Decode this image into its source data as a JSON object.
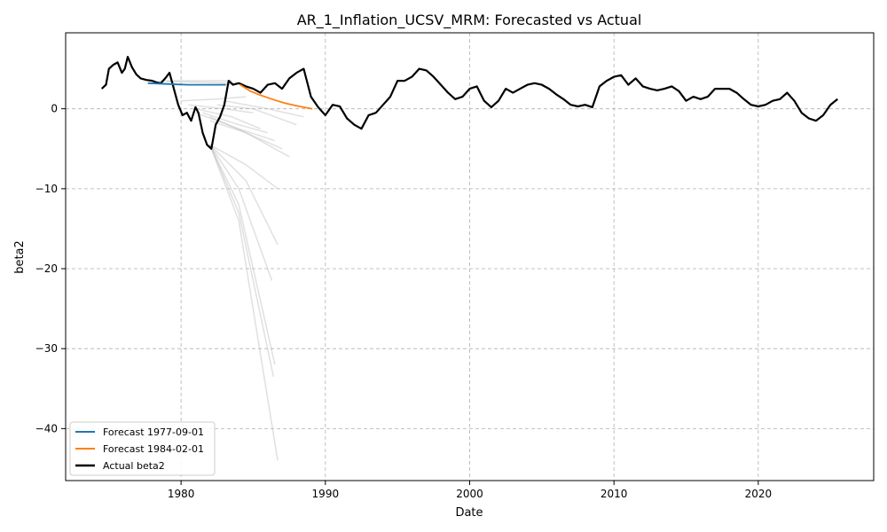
{
  "chart_data": {
    "type": "line",
    "title": "AR_1_Inflation_UCSV_MRM: Forecasted vs Actual",
    "xlabel": "Date",
    "ylabel": "beta2",
    "xlim": [
      1972,
      2028
    ],
    "ylim": [
      -46.5,
      9.5
    ],
    "x_ticks": [
      1980,
      1990,
      2000,
      2010,
      2020
    ],
    "y_ticks": [
      0,
      -10,
      -20,
      -30,
      -40
    ],
    "grid": true,
    "legend_position": "lower-left",
    "colors": {
      "forecast_1": "#1f77b4",
      "forecast_2": "#ff7f0e",
      "actual": "#000000",
      "background_forecasts": "#bbbbbb"
    },
    "series": [
      {
        "name": "Forecast 1977-09-01",
        "color": "#1f77b4",
        "x": [
          1977.7,
          1979,
          1980.5,
          1982,
          1983.1
        ],
        "y": [
          3.2,
          3.1,
          3.0,
          3.0,
          3.0
        ]
      },
      {
        "name": "Forecast 1984-02-01",
        "color": "#ff7f0e",
        "x": [
          1984.1,
          1984.8,
          1985.5,
          1986.3,
          1987.2,
          1988.2,
          1989.1
        ],
        "y": [
          3.0,
          2.2,
          1.7,
          1.2,
          0.7,
          0.3,
          0.0
        ]
      },
      {
        "name": "Actual beta2",
        "color": "#000000",
        "x": [
          1974.5,
          1974.8,
          1975.0,
          1975.3,
          1975.6,
          1975.9,
          1976.1,
          1976.3,
          1976.6,
          1976.9,
          1977.2,
          1977.6,
          1978.0,
          1978.3,
          1978.6,
          1978.9,
          1979.2,
          1979.5,
          1979.8,
          1980.1,
          1980.4,
          1980.7,
          1981.0,
          1981.2,
          1981.5,
          1981.8,
          1982.1,
          1982.4,
          1982.7,
          1983.0,
          1983.3,
          1983.6,
          1984.0,
          1984.5,
          1985.0,
          1985.5,
          1986.0,
          1986.5,
          1987.0,
          1987.5,
          1988.0,
          1988.5,
          1989.0,
          1989.5,
          1990.0,
          1990.5,
          1991.0,
          1991.5,
          1992.0,
          1992.5,
          1993.0,
          1993.5,
          1994.0,
          1994.5,
          1995.0,
          1995.5,
          1996.0,
          1996.5,
          1997.0,
          1997.5,
          1998.0,
          1998.5,
          1999.0,
          1999.5,
          2000.0,
          2000.5,
          2001.0,
          2001.5,
          2002.0,
          2002.5,
          2003.0,
          2003.5,
          2004.0,
          2004.5,
          2005.0,
          2005.5,
          2006.0,
          2006.5,
          2007.0,
          2007.5,
          2008.0,
          2008.5,
          2009.0,
          2009.5,
          2010.0,
          2010.5,
          2011.0,
          2011.5,
          2012.0,
          2012.5,
          2013.0,
          2013.5,
          2014.0,
          2014.5,
          2015.0,
          2015.5,
          2016.0,
          2016.5,
          2017.0,
          2017.5,
          2018.0,
          2018.5,
          2019.0,
          2019.5,
          2020.0,
          2020.5,
          2021.0,
          2021.5,
          2022.0,
          2022.5,
          2023.0,
          2023.5,
          2024.0,
          2024.5,
          2025.0,
          2025.5
        ],
        "y": [
          2.5,
          3.0,
          5.0,
          5.5,
          5.8,
          4.5,
          5.0,
          6.5,
          5.2,
          4.3,
          3.8,
          3.6,
          3.5,
          3.3,
          3.2,
          3.8,
          4.5,
          2.5,
          0.5,
          -0.8,
          -0.5,
          -1.5,
          0.2,
          -0.5,
          -3.0,
          -4.5,
          -5.0,
          -2.0,
          -1.0,
          0.5,
          3.5,
          3.0,
          3.2,
          2.8,
          2.5,
          2.0,
          3.0,
          3.2,
          2.5,
          3.8,
          4.5,
          5.0,
          1.5,
          0.2,
          -0.8,
          0.5,
          0.3,
          -1.2,
          -2.0,
          -2.5,
          -0.8,
          -0.5,
          0.5,
          1.5,
          3.5,
          3.5,
          4.0,
          5.0,
          4.8,
          4.0,
          3.0,
          2.0,
          1.2,
          1.5,
          2.5,
          2.8,
          1.0,
          0.2,
          1.0,
          2.5,
          2.0,
          2.5,
          3.0,
          3.2,
          3.0,
          2.5,
          1.8,
          1.2,
          0.5,
          0.3,
          0.5,
          0.2,
          2.8,
          3.5,
          4.0,
          4.2,
          3.0,
          3.8,
          2.8,
          2.5,
          2.3,
          2.5,
          2.8,
          2.2,
          1.0,
          1.5,
          1.2,
          1.5,
          2.5,
          2.5,
          2.5,
          2.0,
          1.2,
          0.5,
          0.3,
          0.5,
          1.0,
          1.2,
          2.0,
          1.0,
          -0.5,
          -1.2,
          -1.5,
          -0.8,
          0.5,
          1.2
        ]
      }
    ],
    "background_forecasts": [
      {
        "x": [
          1978.5,
          1981.0,
          1983.5
        ],
        "y": [
          3.5,
          3.5,
          3.5
        ]
      },
      {
        "x": [
          1979.0,
          1981.5,
          1984.0
        ],
        "y": [
          3.4,
          3.3,
          3.2
        ]
      },
      {
        "x": [
          1979.5,
          1982.0,
          1984.3
        ],
        "y": [
          3.0,
          3.0,
          3.1
        ]
      },
      {
        "x": [
          1980.0,
          1982.5,
          1984.5
        ],
        "y": [
          1.0,
          1.2,
          1.5
        ]
      },
      {
        "x": [
          1980.5,
          1983.0,
          1985.0
        ],
        "y": [
          0.5,
          0.0,
          -0.5
        ]
      },
      {
        "x": [
          1981.0,
          1983.5,
          1985.5
        ],
        "y": [
          0.0,
          -1.0,
          -2.5
        ]
      },
      {
        "x": [
          1981.5,
          1984.0,
          1986.0
        ],
        "y": [
          -0.5,
          -2.0,
          -3.0
        ]
      },
      {
        "x": [
          1981.0,
          1984.0,
          1986.5
        ],
        "y": [
          -0.5,
          -2.5,
          -4.0
        ]
      },
      {
        "x": [
          1982.0,
          1984.5,
          1987.0
        ],
        "y": [
          -1.0,
          -3.0,
          -5.0
        ]
      },
      {
        "x": [
          1982.0,
          1984.5,
          1987.5
        ],
        "y": [
          -1.5,
          -3.0,
          -6.0
        ]
      },
      {
        "x": [
          1982.5,
          1985.0,
          1988.0
        ],
        "y": [
          0.5,
          0.0,
          -2.0
        ]
      },
      {
        "x": [
          1983.0,
          1986.0,
          1988.5
        ],
        "y": [
          1.0,
          0.0,
          -1.0
        ]
      },
      {
        "x": [
          1982.0,
          1984.5,
          1986.7
        ],
        "y": [
          -4.5,
          -7.0,
          -10.0
        ]
      },
      {
        "x": [
          1982.0,
          1984.5,
          1986.7
        ],
        "y": [
          -4.5,
          -9.0,
          -17.0
        ]
      },
      {
        "x": [
          1982.0,
          1984.0,
          1986.3
        ],
        "y": [
          -4.5,
          -10.0,
          -21.5
        ]
      },
      {
        "x": [
          1982.0,
          1984.0,
          1986.5
        ],
        "y": [
          -4.5,
          -12.0,
          -32.0
        ]
      },
      {
        "x": [
          1982.0,
          1984.0,
          1986.4
        ],
        "y": [
          -4.5,
          -13.0,
          -33.5
        ]
      },
      {
        "x": [
          1982.0,
          1984.0,
          1986.7
        ],
        "y": [
          -4.5,
          -14.0,
          -44.0
        ]
      }
    ]
  }
}
